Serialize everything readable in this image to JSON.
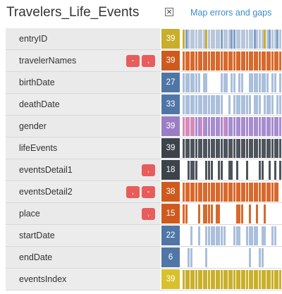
{
  "header": {
    "title": "Travelers_Life_Events",
    "close_glyph": "×",
    "map_link": "Map errors and gaps"
  },
  "rows": [
    {
      "name": "entryID",
      "count": "39",
      "count_color": "#c9ae2c",
      "bar_color": "#b8c6db",
      "bar_pattern": "blue-mix",
      "tags": [],
      "fill": 1.0
    },
    {
      "name": "travelerNames",
      "count": "39",
      "count_color": "#cf5a1d",
      "bar_color": "#d8692c",
      "bar_pattern": "solid",
      "tags": [
        "-",
        ","
      ],
      "fill": 1.0
    },
    {
      "name": "birthDate",
      "count": "27",
      "count_color": "#4f76a7",
      "bar_color": "#aabfdb",
      "bar_pattern": "gaps",
      "tags": [],
      "fill": 0.69
    },
    {
      "name": "deathDate",
      "count": "33",
      "count_color": "#4f76a7",
      "bar_color": "#aabfdb",
      "bar_pattern": "gaps",
      "tags": [],
      "fill": 0.85
    },
    {
      "name": "gender",
      "count": "39",
      "count_color": "#9a7ec4",
      "bar_color": "#a78cd0",
      "bar_pattern": "solid",
      "tags": [],
      "fill": 1.0
    },
    {
      "name": "lifeEvents",
      "count": "39",
      "count_color": "#3d434b",
      "bar_color": "#4e545c",
      "bar_pattern": "solid",
      "tags": [],
      "fill": 1.0
    },
    {
      "name": "eventsDetail1",
      "count": "18",
      "count_color": "#3d434b",
      "bar_color": "#4e545c",
      "bar_pattern": "sparse",
      "tags": [
        ","
      ],
      "fill": 0.46
    },
    {
      "name": "eventsDetail2",
      "count": "38",
      "count_color": "#cf5a1d",
      "bar_color": "#d8692c",
      "bar_pattern": "solid",
      "tags": [
        ",",
        "-"
      ],
      "fill": 0.97
    },
    {
      "name": "place",
      "count": "15",
      "count_color": "#cf5a1d",
      "bar_color": "#d8692c",
      "bar_pattern": "sparse",
      "tags": [
        ","
      ],
      "fill": 0.38
    },
    {
      "name": "startDate",
      "count": "22",
      "count_color": "#4f76a7",
      "bar_color": "#aabfdb",
      "bar_pattern": "gaps",
      "tags": [],
      "fill": 0.56
    },
    {
      "name": "endDate",
      "count": "6",
      "count_color": "#4f76a7",
      "bar_color": "#aabfdb",
      "bar_pattern": "very-sparse",
      "tags": [],
      "fill": 0.15
    },
    {
      "name": "eventsIndex",
      "count": "39",
      "count_color": "#d9c12d",
      "bar_color": "#c9b02c",
      "bar_pattern": "solid",
      "tags": [],
      "fill": 1.0
    }
  ]
}
